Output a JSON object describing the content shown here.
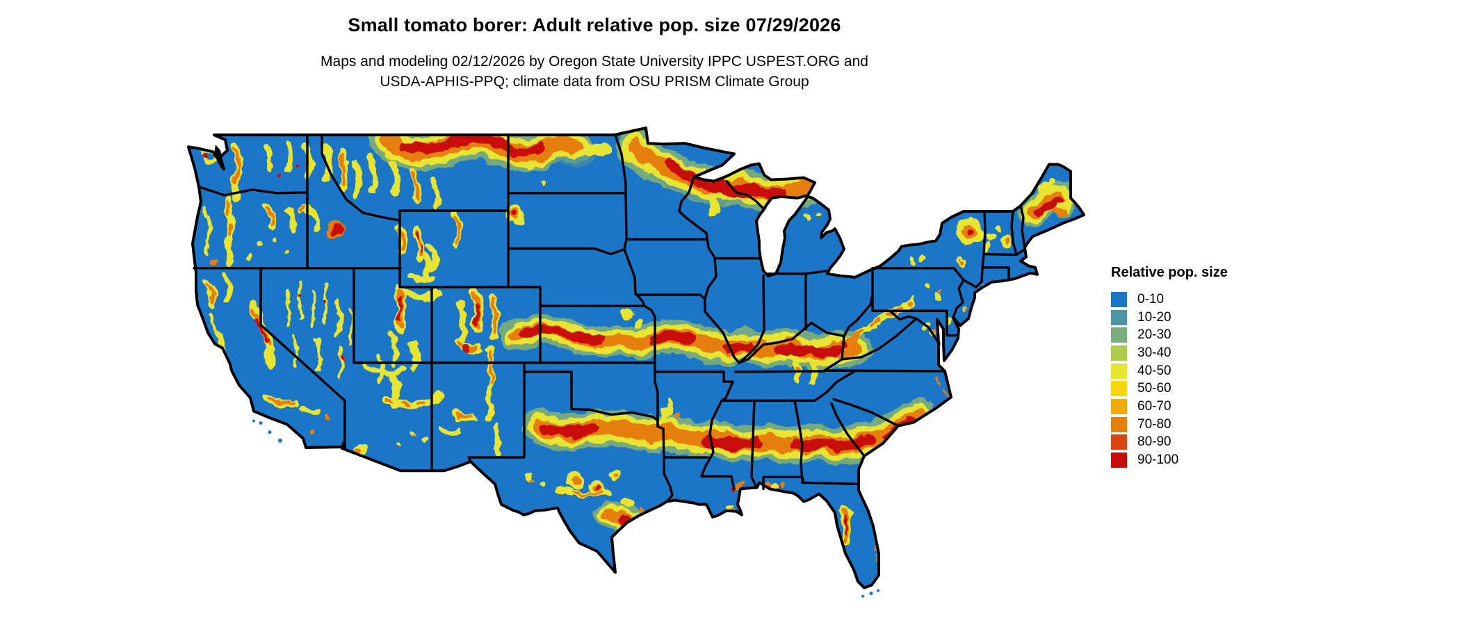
{
  "header": {
    "title": "Small tomato borer: Adult relative pop. size 07/29/2026",
    "subtitle_line1": "Maps and modeling 02/12/2026 by Oregon State University IPPC USPEST.ORG and",
    "subtitle_line2": "USDA-APHIS-PPQ; climate data from OSU PRISM Climate Group"
  },
  "legend": {
    "title": "Relative pop. size",
    "items": [
      {
        "label": "0-10",
        "color": "#1C76C8"
      },
      {
        "label": "10-20",
        "color": "#4E93A6"
      },
      {
        "label": "20-30",
        "color": "#7BAD7E"
      },
      {
        "label": "30-40",
        "color": "#AECB4D"
      },
      {
        "label": "40-50",
        "color": "#E8E532"
      },
      {
        "label": "50-60",
        "color": "#F6D511"
      },
      {
        "label": "60-70",
        "color": "#F2A90E"
      },
      {
        "label": "70-80",
        "color": "#E67F0C"
      },
      {
        "label": "80-90",
        "color": "#D8460F"
      },
      {
        "label": "90-100",
        "color": "#C90B0D"
      }
    ]
  },
  "map": {
    "region": "Contiguous United States",
    "kind": "raster heat map with state borders",
    "background_color": "#FFFFFF",
    "base_value_class": "0-10",
    "border_color": "#000000",
    "high_value_regions": [
      "northern Montana and North Dakota border",
      "northern Minnesota, Wisconsin and upper Michigan",
      "interior Maine and Adirondacks",
      "central Rockies, Idaho, Wyoming, Colorado, Utah ridges",
      "Cascades and Sierra Nevada",
      "Kansas to Missouri band",
      "Missouri - Illinois - Indiana - Kentucky - West Virginia band",
      "Oklahoma - Arkansas - Mississippi - Alabama - Georgia - South Carolina band",
      "Texas gulf coast band",
      "central Florida ridge"
    ]
  }
}
